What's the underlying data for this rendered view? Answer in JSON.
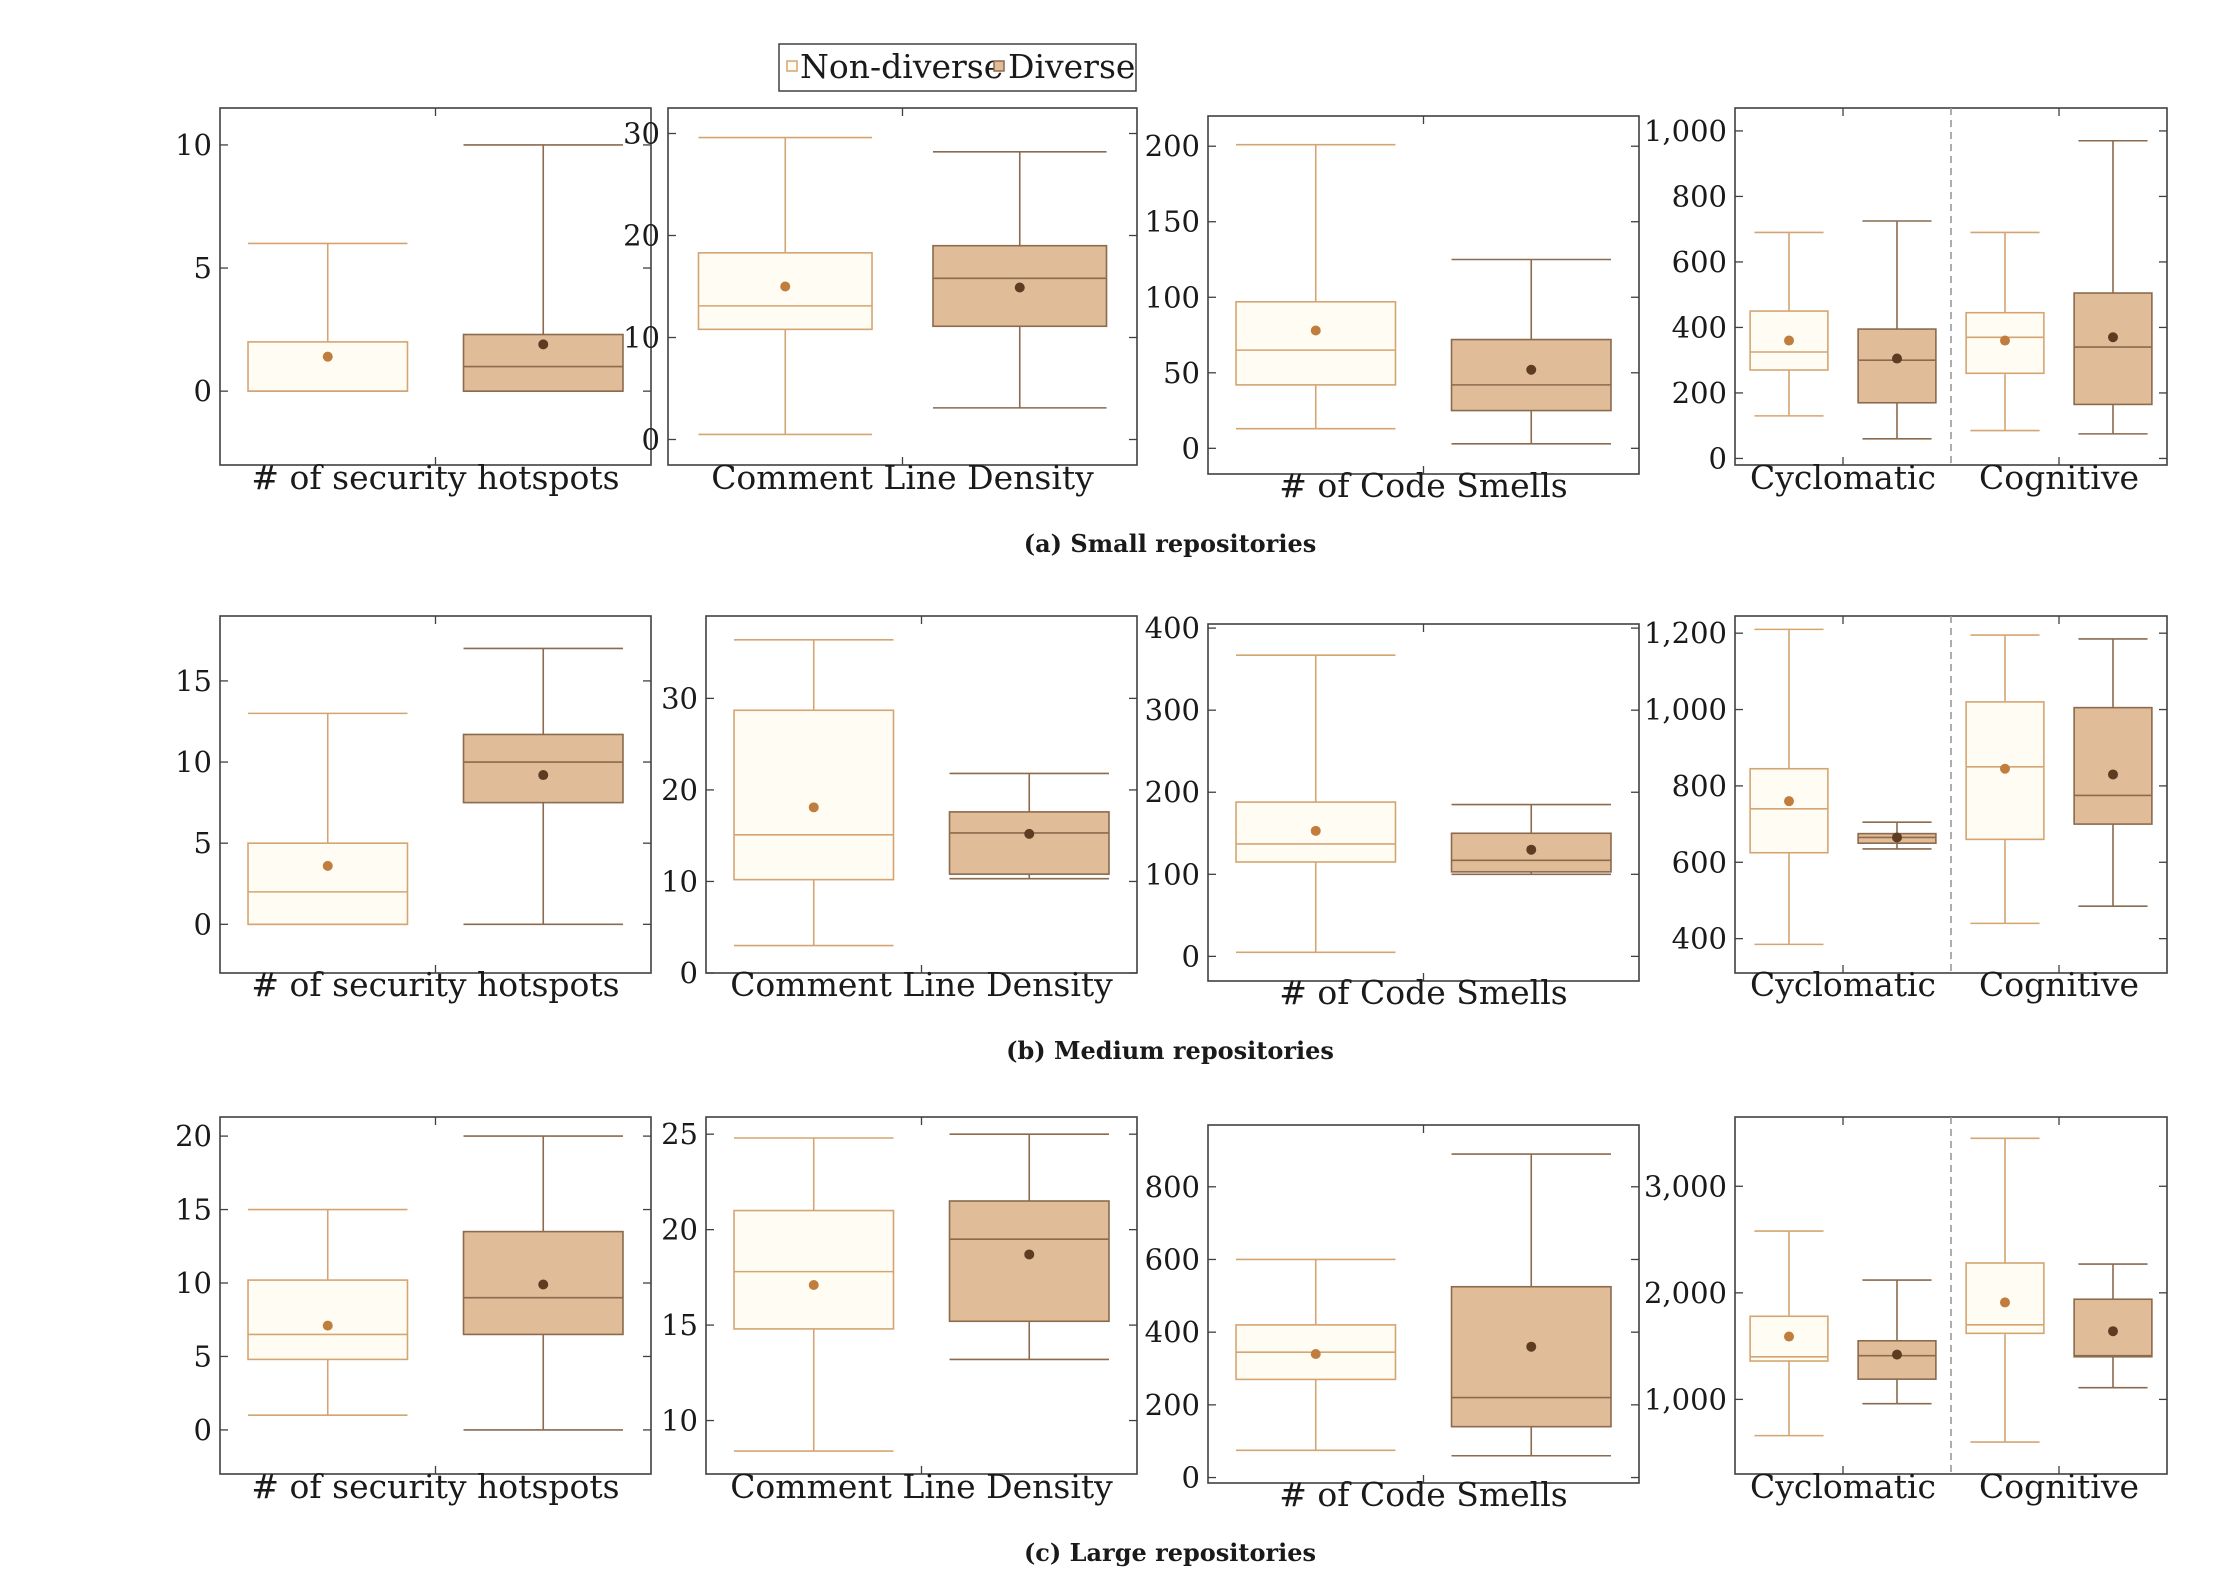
{
  "legend": [
    {
      "label": "Non-diverse",
      "fill": "#fffdf3",
      "stroke": "#d4a572"
    },
    {
      "label": "Diverse",
      "fill": "#e1bc98",
      "stroke": "#8b6a4e"
    }
  ],
  "style": {
    "frame": "#404040",
    "nondiverse_fill": "#fffdf3",
    "nondiverse_stroke": "#d4a572",
    "nondiverse_mean": "#c17d3e",
    "diverse_fill": "#e1bc98",
    "diverse_stroke": "#8b6a4e",
    "diverse_mean": "#5d3c22",
    "divider": "#999999"
  },
  "captions": [
    "(a) Small repositories",
    "(b) Medium repositories",
    "(c) Large repositories"
  ],
  "chart_data": [
    {
      "type": "box",
      "row": 0,
      "xlabel": "# of security hotspots",
      "ylim": [
        -3,
        11.5
      ],
      "yticks": [
        0,
        5,
        10
      ],
      "ytick_labels": [
        "0",
        "5",
        "10"
      ],
      "boxes": [
        {
          "group": "Non-diverse",
          "min": 0,
          "q1": 0,
          "median": 0,
          "q3": 2,
          "max": 6,
          "mean": 1.4
        },
        {
          "group": "Diverse",
          "min": 0,
          "q1": 0,
          "median": 1,
          "q3": 2.3,
          "max": 10,
          "mean": 1.9
        }
      ]
    },
    {
      "type": "box",
      "row": 0,
      "xlabel": "Comment Line Density",
      "ylim": [
        -2.5,
        32.5
      ],
      "yticks": [
        0,
        10,
        20,
        30
      ],
      "ytick_labels": [
        "0",
        "10",
        "20",
        "30"
      ],
      "boxes": [
        {
          "group": "Non-diverse",
          "min": 0.5,
          "q1": 10.8,
          "median": 13.1,
          "q3": 18.3,
          "max": 29.6,
          "mean": 15
        },
        {
          "group": "Diverse",
          "min": 3.1,
          "q1": 11.1,
          "median": 15.8,
          "q3": 19,
          "max": 28.2,
          "mean": 14.9
        }
      ]
    },
    {
      "type": "box",
      "row": 0,
      "xlabel": "# of Code Smells",
      "ylim": [
        -17,
        220
      ],
      "yticks": [
        0,
        50,
        100,
        150,
        200
      ],
      "ytick_labels": [
        "0",
        "50",
        "100",
        "150",
        "200"
      ],
      "boxes": [
        {
          "group": "Non-diverse",
          "min": 13,
          "q1": 42,
          "median": 65,
          "q3": 97,
          "max": 201,
          "mean": 78
        },
        {
          "group": "Diverse",
          "min": 3,
          "q1": 25,
          "median": 42,
          "q3": 72,
          "max": 125,
          "mean": 52
        }
      ]
    },
    {
      "type": "box",
      "row": 0,
      "xlabel_left": "Cyclomatic",
      "xlabel_right": "Cognitive",
      "ylim": [
        -20,
        1070
      ],
      "yticks": [
        0,
        200,
        400,
        600,
        800,
        1000
      ],
      "ytick_labels": [
        "0",
        "200",
        "400",
        "600",
        "800",
        "1,000"
      ],
      "boxes": [
        {
          "group": "Non-diverse",
          "metric": "Cyclomatic",
          "min": 130,
          "q1": 270,
          "median": 325,
          "q3": 450,
          "max": 690,
          "mean": 360
        },
        {
          "group": "Diverse",
          "metric": "Cyclomatic",
          "min": 60,
          "q1": 170,
          "median": 300,
          "q3": 395,
          "max": 725,
          "mean": 305
        },
        {
          "group": "Non-diverse",
          "metric": "Cognitive",
          "min": 85,
          "q1": 260,
          "median": 370,
          "q3": 445,
          "max": 690,
          "mean": 360
        },
        {
          "group": "Diverse",
          "metric": "Cognitive",
          "min": 75,
          "q1": 165,
          "median": 340,
          "q3": 505,
          "max": 970,
          "mean": 370
        }
      ]
    },
    {
      "type": "box",
      "row": 1,
      "xlabel": "# of security hotspots",
      "ylim": [
        -3,
        19
      ],
      "yticks": [
        0,
        5,
        10,
        15
      ],
      "ytick_labels": [
        "0",
        "5",
        "10",
        "15"
      ],
      "boxes": [
        {
          "group": "Non-diverse",
          "min": 0,
          "q1": 0,
          "median": 2,
          "q3": 5,
          "max": 13,
          "mean": 3.6
        },
        {
          "group": "Diverse",
          "min": 0,
          "q1": 7.5,
          "median": 10,
          "q3": 11.7,
          "max": 17,
          "mean": 9.2
        }
      ]
    },
    {
      "type": "box",
      "row": 1,
      "xlabel": "Comment Line Density",
      "ylim": [
        0,
        39
      ],
      "yticks": [
        0,
        10,
        20,
        30
      ],
      "ytick_labels": [
        "0",
        "10",
        "20",
        "30"
      ],
      "boxes": [
        {
          "group": "Non-diverse",
          "min": 3,
          "q1": 10.2,
          "median": 15.1,
          "q3": 28.7,
          "max": 36.4,
          "mean": 18.1
        },
        {
          "group": "Diverse",
          "min": 10.3,
          "q1": 10.8,
          "median": 15.3,
          "q3": 17.6,
          "max": 21.8,
          "mean": 15.2
        }
      ]
    },
    {
      "type": "box",
      "row": 1,
      "xlabel": "# of Code Smells",
      "ylim": [
        -30,
        405
      ],
      "yticks": [
        0,
        100,
        200,
        300,
        400
      ],
      "ytick_labels": [
        "0",
        "100",
        "200",
        "300",
        "400"
      ],
      "boxes": [
        {
          "group": "Non-diverse",
          "min": 5,
          "q1": 115,
          "median": 137,
          "q3": 188,
          "max": 367,
          "mean": 153
        },
        {
          "group": "Diverse",
          "min": 100,
          "q1": 103,
          "median": 117,
          "q3": 150,
          "max": 185,
          "mean": 130
        }
      ]
    },
    {
      "type": "box",
      "row": 1,
      "xlabel_left": "Cyclomatic",
      "xlabel_right": "Cognitive",
      "ylim": [
        310,
        1245
      ],
      "yticks": [
        400,
        600,
        800,
        1000,
        1200
      ],
      "ytick_labels": [
        "400",
        "600",
        "800",
        "1,000",
        "1,200"
      ],
      "boxes": [
        {
          "group": "Non-diverse",
          "metric": "Cyclomatic",
          "min": 385,
          "q1": 625,
          "median": 740,
          "q3": 845,
          "max": 1210,
          "mean": 760
        },
        {
          "group": "Diverse",
          "metric": "Cyclomatic",
          "min": 635,
          "q1": 650,
          "median": 665,
          "q3": 675,
          "max": 705,
          "mean": 665
        },
        {
          "group": "Non-diverse",
          "metric": "Cognitive",
          "min": 440,
          "q1": 660,
          "median": 850,
          "q3": 1020,
          "max": 1195,
          "mean": 845
        },
        {
          "group": "Diverse",
          "metric": "Cognitive",
          "min": 485,
          "q1": 700,
          "median": 775,
          "q3": 1005,
          "max": 1185,
          "mean": 830
        }
      ]
    },
    {
      "type": "box",
      "row": 2,
      "xlabel": "# of security hotspots",
      "ylim": [
        -3,
        21.3
      ],
      "yticks": [
        0,
        5,
        10,
        15,
        20
      ],
      "ytick_labels": [
        "0",
        "5",
        "10",
        "15",
        "20"
      ],
      "boxes": [
        {
          "group": "Non-diverse",
          "min": 1,
          "q1": 4.8,
          "median": 6.5,
          "q3": 10.2,
          "max": 15,
          "mean": 7.1
        },
        {
          "group": "Diverse",
          "min": 0,
          "q1": 6.5,
          "median": 9,
          "q3": 13.5,
          "max": 20,
          "mean": 9.9
        }
      ]
    },
    {
      "type": "box",
      "row": 2,
      "xlabel": "Comment Line Density",
      "ylim": [
        7.2,
        25.9
      ],
      "yticks": [
        10,
        15,
        20,
        25
      ],
      "ytick_labels": [
        "10",
        "15",
        "20",
        "25"
      ],
      "boxes": [
        {
          "group": "Non-diverse",
          "min": 8.4,
          "q1": 14.8,
          "median": 17.8,
          "q3": 21,
          "max": 24.8,
          "mean": 17.1
        },
        {
          "group": "Diverse",
          "min": 13.2,
          "q1": 15.2,
          "median": 19.5,
          "q3": 21.5,
          "max": 25,
          "mean": 18.7
        }
      ]
    },
    {
      "type": "box",
      "row": 2,
      "xlabel": "# of Code Smells",
      "ylim": [
        -15,
        970
      ],
      "yticks": [
        0,
        200,
        400,
        600,
        800
      ],
      "ytick_labels": [
        "0",
        "200",
        "400",
        "600",
        "800"
      ],
      "boxes": [
        {
          "group": "Non-diverse",
          "min": 75,
          "q1": 270,
          "median": 345,
          "q3": 420,
          "max": 600,
          "mean": 340
        },
        {
          "group": "Diverse",
          "min": 60,
          "q1": 140,
          "median": 220,
          "q3": 525,
          "max": 890,
          "mean": 360
        }
      ]
    },
    {
      "type": "box",
      "row": 2,
      "xlabel_left": "Cyclomatic",
      "xlabel_right": "Cognitive",
      "ylim": [
        300,
        3650
      ],
      "yticks": [
        1000,
        2000,
        3000
      ],
      "ytick_labels": [
        "1,000",
        "2,000",
        "3,000"
      ],
      "boxes": [
        {
          "group": "Non-diverse",
          "metric": "Cyclomatic",
          "min": 660,
          "q1": 1360,
          "median": 1400,
          "q3": 1780,
          "max": 2580,
          "mean": 1590
        },
        {
          "group": "Diverse",
          "metric": "Cyclomatic",
          "min": 960,
          "q1": 1190,
          "median": 1410,
          "q3": 1550,
          "max": 2120,
          "mean": 1420
        },
        {
          "group": "Non-diverse",
          "metric": "Cognitive",
          "min": 600,
          "q1": 1620,
          "median": 1700,
          "q3": 2280,
          "max": 3450,
          "mean": 1910
        },
        {
          "group": "Diverse",
          "metric": "Cognitive",
          "min": 1110,
          "q1": 1400,
          "median": 1410,
          "q3": 1940,
          "max": 2270,
          "mean": 1640
        }
      ]
    }
  ]
}
